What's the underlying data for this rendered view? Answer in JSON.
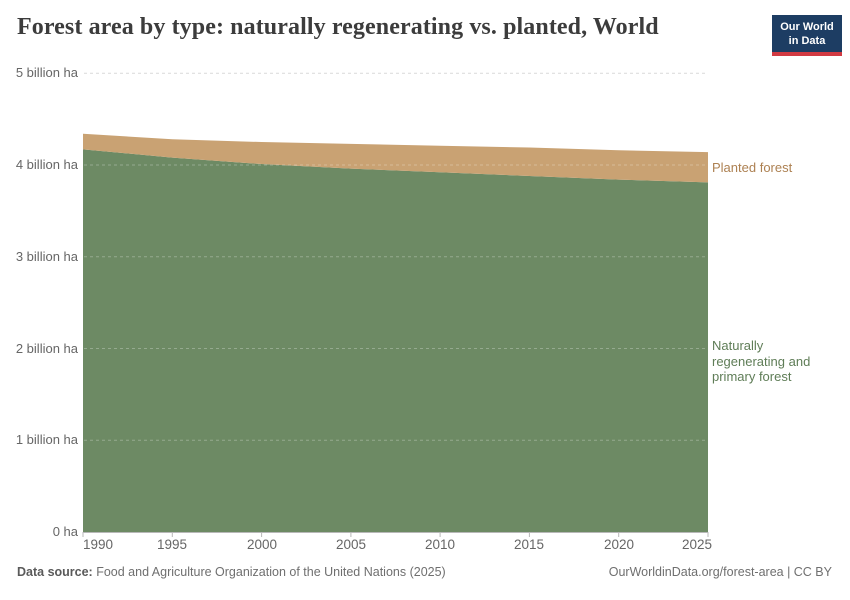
{
  "header": {
    "title": "Forest area by type: naturally regenerating vs. planted, World",
    "logo": {
      "line1": "Our World",
      "line2": "in Data"
    }
  },
  "chart_data": {
    "type": "area",
    "stacked": true,
    "title": "Forest area by type: naturally regenerating vs. planted, World",
    "unit": "billion ha",
    "x": [
      1990,
      1995,
      2000,
      2005,
      2010,
      2015,
      2020,
      2025
    ],
    "series": [
      {
        "name": "Naturally regenerating and primary forest",
        "color": "#6d8a64",
        "values": [
          4.17,
          4.08,
          4.01,
          3.96,
          3.92,
          3.88,
          3.84,
          3.81
        ]
      },
      {
        "name": "Planted forest",
        "color": "#c9a273",
        "values": [
          0.17,
          0.2,
          0.24,
          0.27,
          0.29,
          0.31,
          0.32,
          0.33
        ]
      }
    ],
    "xlim": [
      1990,
      2025
    ],
    "ylim": [
      0,
      5
    ],
    "y_gridlines": [
      0,
      1,
      2,
      3,
      4,
      5
    ],
    "grid": "dashed horizontal",
    "legend_position": "right edge, colored series labels"
  },
  "axis": {
    "y_ticks": [
      "5 billion ha",
      "4 billion ha",
      "3 billion ha",
      "2 billion ha",
      "1 billion ha",
      "0 ha"
    ],
    "x_ticks": [
      "1990",
      "1995",
      "2000",
      "2005",
      "2010",
      "2015",
      "2020",
      "2025"
    ]
  },
  "labels": {
    "planted": "Planted forest",
    "natural": "Naturally regenerating and primary forest"
  },
  "footer": {
    "source_label": "Data source:",
    "source_text": " Food and Agriculture Organization of the United Nations (2025)",
    "credit": "OurWorldinData.org/forest-area | CC BY"
  },
  "colors": {
    "natural_area": "#6d8a64",
    "planted_area": "#c9a273",
    "natural_label": "#5f7d57",
    "planted_label": "#ad8152",
    "logo_bg": "#1d3d63",
    "logo_stripe": "#d23a42",
    "grid": "#d9d9d9",
    "axis_text": "#666666"
  }
}
